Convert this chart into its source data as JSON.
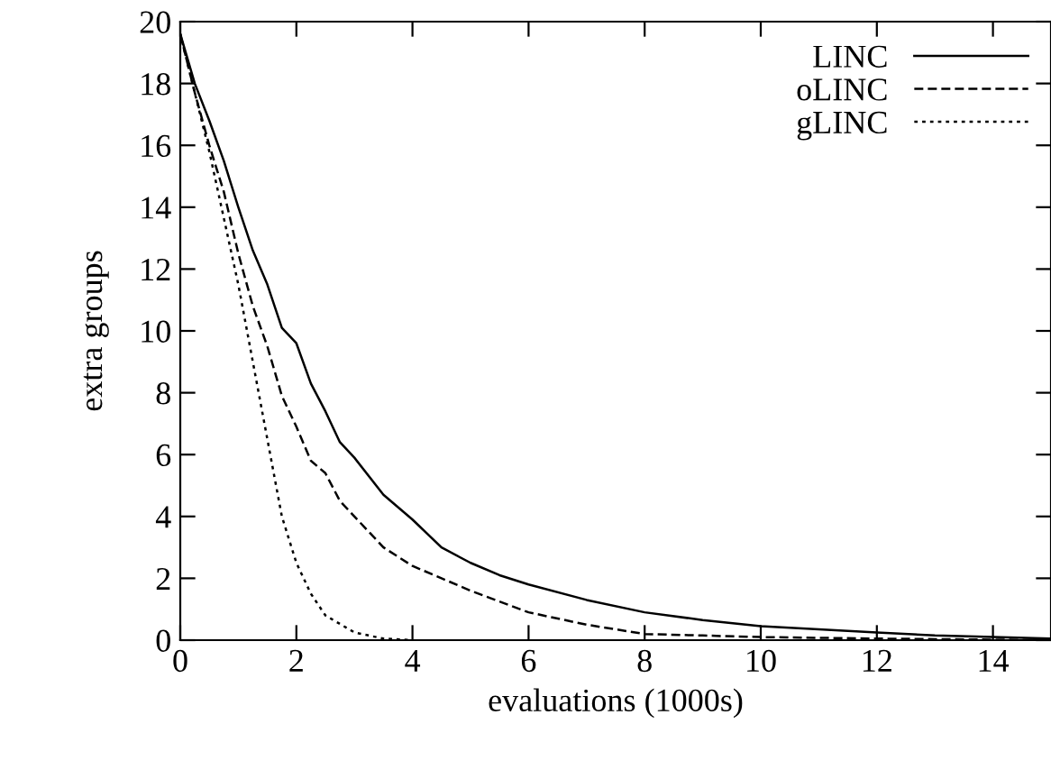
{
  "chart_data": {
    "type": "line",
    "xlabel": "evaluations (1000s)",
    "ylabel": "extra groups",
    "xlim": [
      0,
      15
    ],
    "ylim": [
      0,
      20
    ],
    "xticks": [
      0,
      2,
      4,
      6,
      8,
      10,
      12,
      14
    ],
    "yticks": [
      0,
      2,
      4,
      6,
      8,
      10,
      12,
      14,
      16,
      18,
      20
    ],
    "grid": false,
    "legend": "top right",
    "marker": "none",
    "series": [
      {
        "name": "LINC",
        "color": "#000000",
        "line_style": "solid",
        "x": [
          0,
          0.25,
          0.5,
          0.75,
          1,
          1.25,
          1.5,
          1.75,
          2,
          2.25,
          2.5,
          2.75,
          3,
          3.5,
          4,
          4.5,
          5,
          5.5,
          6,
          7,
          8,
          9,
          10,
          11,
          12,
          13,
          14,
          15
        ],
        "values": [
          19.6,
          18,
          16.8,
          15.5,
          14,
          12.6,
          11.5,
          10.1,
          9.6,
          8.3,
          7.4,
          6.4,
          5.9,
          4.7,
          3.9,
          3.0,
          2.5,
          2.1,
          1.8,
          1.3,
          0.9,
          0.65,
          0.45,
          0.35,
          0.25,
          0.15,
          0.1,
          0.05
        ]
      },
      {
        "name": "oLINC",
        "color": "#000000",
        "line_style": "dashed",
        "x": [
          0,
          0.25,
          0.5,
          0.75,
          1,
          1.25,
          1.5,
          1.75,
          2,
          2.25,
          2.5,
          2.75,
          3,
          3.5,
          4,
          4.5,
          5,
          6,
          7,
          8,
          9,
          10,
          12,
          15
        ],
        "values": [
          19.6,
          17.7,
          16,
          14.5,
          12.5,
          10.8,
          9.5,
          7.9,
          6.9,
          5.8,
          5.4,
          4.5,
          4.0,
          3.0,
          2.4,
          2.0,
          1.6,
          0.9,
          0.5,
          0.2,
          0.15,
          0.1,
          0.05,
          0
        ]
      },
      {
        "name": "gLINC",
        "color": "#000000",
        "line_style": "dotted",
        "x": [
          0,
          0.5,
          1,
          1.25,
          1.5,
          1.75,
          2,
          2.25,
          2.5,
          3,
          3.5,
          4
        ],
        "values": [
          19.6,
          15.8,
          11.5,
          9.0,
          6.5,
          4.0,
          2.5,
          1.5,
          0.8,
          0.25,
          0.05,
          0
        ]
      }
    ]
  }
}
